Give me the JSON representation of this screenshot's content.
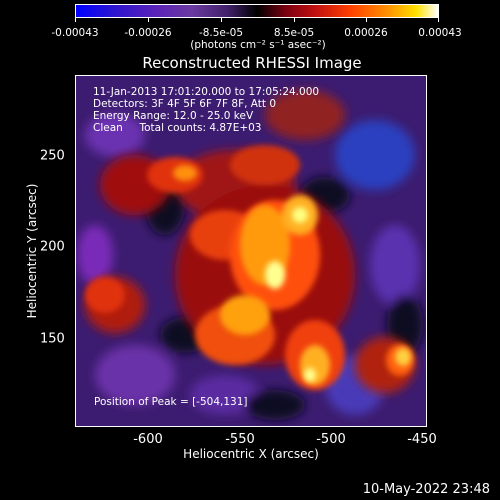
{
  "colorbar": {
    "labels": [
      "-0.00043",
      "-0.00026",
      "-8.5e-05",
      "8.5e-05",
      "0.00026",
      "0.00043"
    ],
    "units": "(photons cm⁻² s⁻¹ asec⁻²)"
  },
  "title": "Reconstructed RHESSI Image",
  "info": {
    "time": "11-Jan-2013 17:01:20.000 to 17:05:24.000",
    "detectors": "Detectors: 3F 4F 5F 6F 7F 8F, Att 0",
    "energy": "Energy Range: 12.0 - 25.0 keV",
    "clean": "Clean     Total counts: 4.87E+03"
  },
  "peak": "Position of Peak = [-504,131]",
  "axes": {
    "x_label": "Heliocentric X (arcsec)",
    "y_label": "Heliocentric Y (arcsec)",
    "x_ticks": [
      "-600",
      "-550",
      "-500",
      "-450"
    ],
    "y_ticks": [
      "250",
      "200",
      "150"
    ]
  },
  "timestamp": "10-May-2022 23:48",
  "colors": {
    "background": "#000000",
    "text": "#ffffff"
  }
}
